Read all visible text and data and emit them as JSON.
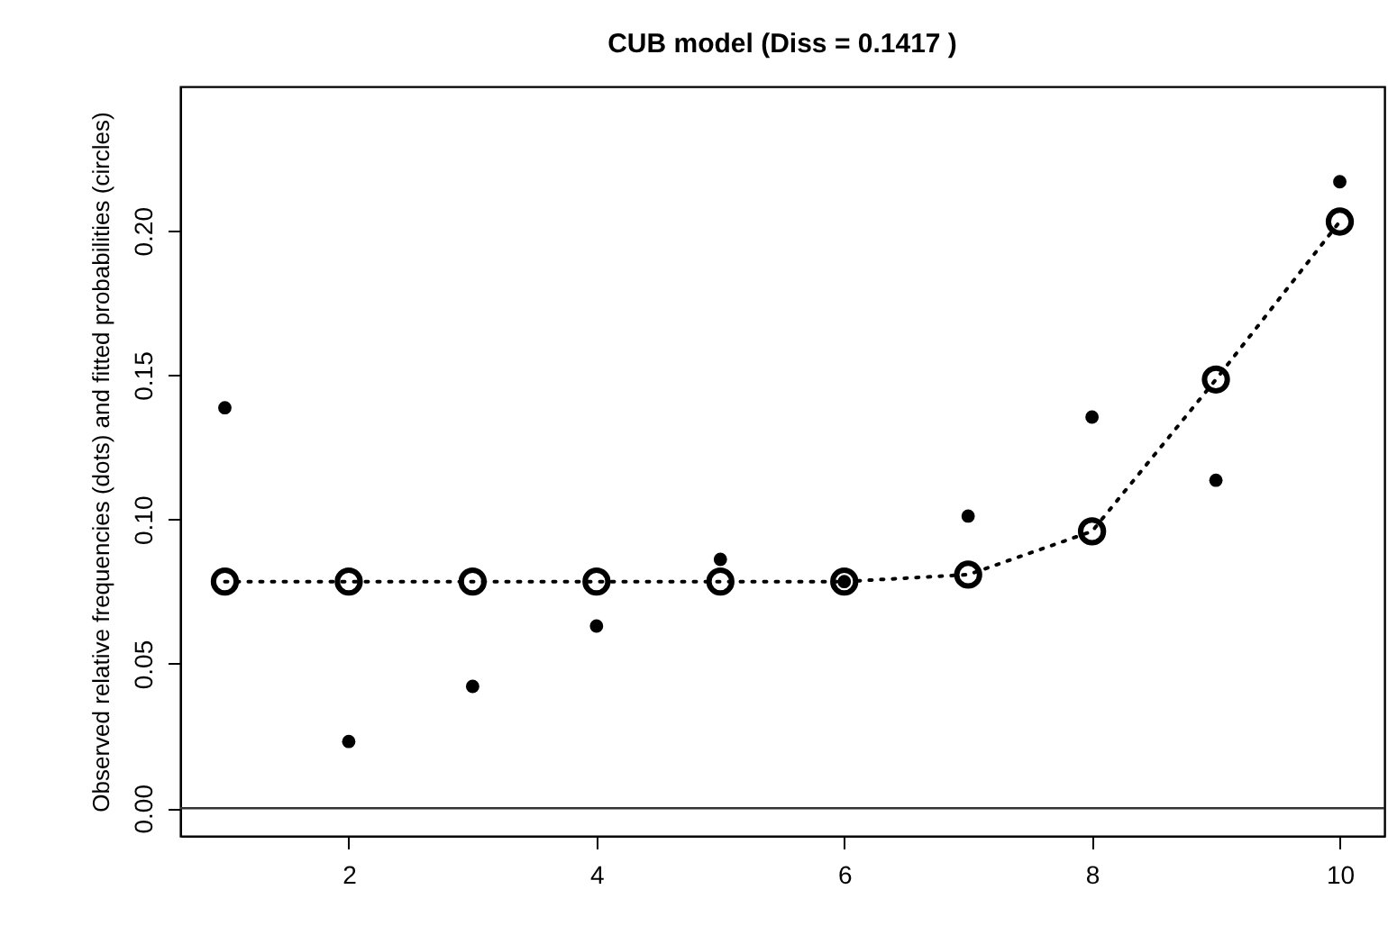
{
  "chart_data": {
    "type": "scatter",
    "title": "CUB model      (Diss = 0.1417 )",
    "ylabel": "Observed relative frequencies (dots) and fitted probabilities (circles)",
    "x": [
      1,
      2,
      3,
      4,
      5,
      6,
      7,
      8,
      9,
      10
    ],
    "series": [
      {
        "color": "#000000",
        "marker": "circle",
        "values": [
          0.1387,
          0.0231,
          0.0422,
          0.0631,
          0.0862,
          0.0785,
          0.1012,
          0.1355,
          0.1136,
          0.217
        ]
      },
      {
        "type": "line",
        "color": "#000000",
        "marker": "circle",
        "line_style": "dotted",
        "values": [
          0.0785,
          0.0785,
          0.0785,
          0.0785,
          0.0785,
          0.0785,
          0.0809,
          0.0959,
          0.1485,
          0.2032
        ]
      }
    ],
    "xlim": [
      0.64,
      10.36
    ],
    "xticks": [
      2,
      4,
      6,
      8,
      10
    ],
    "ylim": [
      -0.0096,
      0.25
    ],
    "yticks": [
      {
        "value": 0,
        "label": "0.00"
      },
      {
        "value": 0.05,
        "label": "0.05"
      },
      {
        "value": 0.1,
        "label": "0.10"
      },
      {
        "value": 0.15,
        "label": "0.15"
      },
      {
        "value": 0.2,
        "label": "0.20"
      }
    ],
    "ref_lines": [
      {
        "axis": "y",
        "value": 0,
        "color": "#333333"
      }
    ],
    "grid": false
  }
}
